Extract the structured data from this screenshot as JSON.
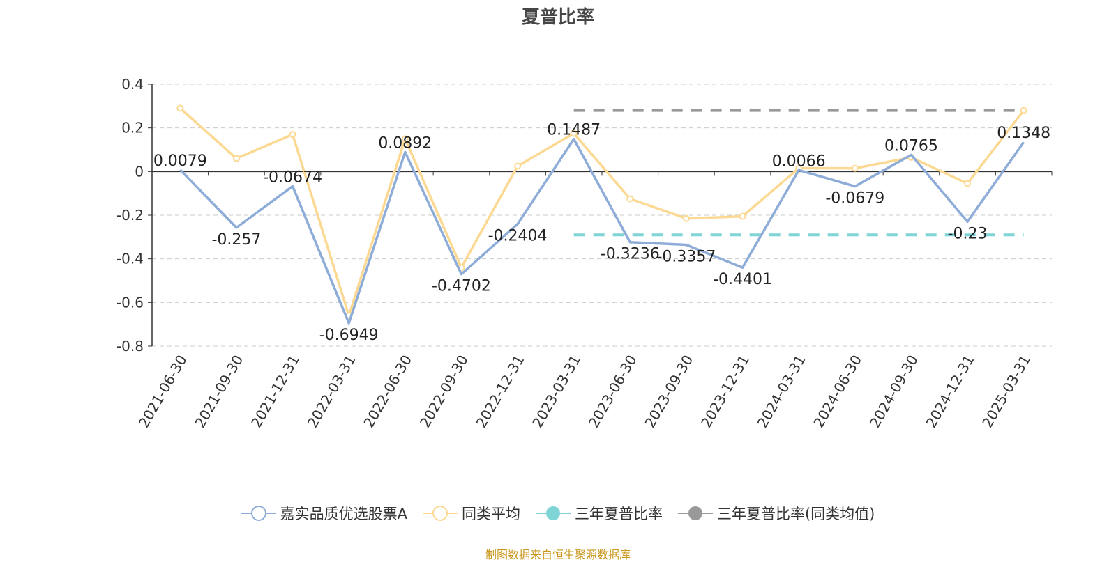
{
  "chart_data": {
    "type": "line",
    "title": "夏普比率",
    "categories": [
      "2021-06-30",
      "2021-09-30",
      "2021-12-31",
      "2022-03-31",
      "2022-06-30",
      "2022-09-30",
      "2022-12-31",
      "2023-03-31",
      "2023-06-30",
      "2023-09-30",
      "2023-12-31",
      "2024-03-31",
      "2024-06-30",
      "2024-09-30",
      "2024-12-31",
      "2025-03-31"
    ],
    "ylim": [
      -0.8,
      0.4
    ],
    "yticks": [
      0.4,
      0.2,
      0,
      -0.2,
      -0.4,
      -0.6,
      -0.8
    ],
    "ytick_labels": [
      "0.4",
      "0.2",
      "0",
      "-0.2",
      "-0.4",
      "-0.6",
      "-0.8"
    ],
    "grid": true,
    "legend_position": "bottom",
    "series": [
      {
        "name": "嘉实品质优选股票A",
        "color": "#8eacd8",
        "values": [
          0.0079,
          -0.257,
          -0.0674,
          -0.6949,
          0.0892,
          -0.4702,
          -0.2404,
          0.1487,
          -0.3236,
          -0.3357,
          -0.4401,
          0.0066,
          -0.0679,
          0.0765,
          -0.23,
          0.1348
        ],
        "labels": [
          "0.0079",
          "-0.257",
          "-0.0674",
          "-0.6949",
          "0.0892",
          "-0.4702",
          "-0.2404",
          "0.1487",
          "-0.3236",
          "-0.3357",
          "-0.4401",
          "0.0066",
          "-0.0679",
          "0.0765",
          "-0.23",
          "0.1348"
        ]
      },
      {
        "name": "同类平均",
        "color": "#fcd993",
        "values": [
          0.29,
          0.06,
          0.17,
          -0.66,
          0.15,
          -0.44,
          0.025,
          0.175,
          -0.125,
          -0.215,
          -0.205,
          0.015,
          0.015,
          0.065,
          -0.055,
          0.28
        ]
      },
      {
        "name": "三年夏普比率",
        "color": "#7fd4d6",
        "type": "dashed-segment",
        "from": "2023-03-31",
        "to": "2025-03-31",
        "value": -0.29
      },
      {
        "name": "三年夏普比率(同类均值)",
        "color": "#999999",
        "type": "dashed-segment",
        "from": "2023-03-31",
        "to": "2025-03-31",
        "value": 0.28
      }
    ]
  },
  "footer": "制图数据来自恒生聚源数据库"
}
